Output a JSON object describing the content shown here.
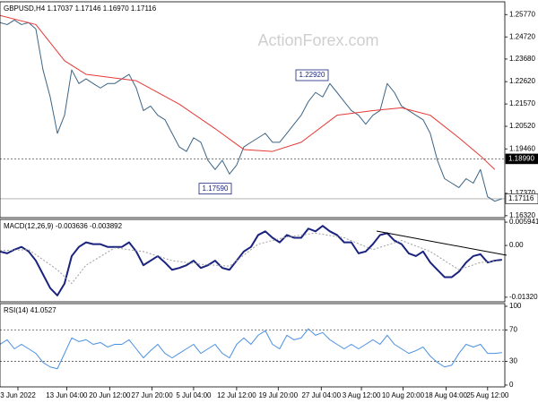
{
  "chart_data": [
    {
      "type": "line",
      "title": "GBPUSD,H4 1.17037 1.17146 1.16970 1.17116",
      "watermark": "ActionForex.com",
      "xlim": [
        0,
        70.4
      ],
      "xticks": [
        {
          "value": 2.5,
          "label": "3 Jun 2022"
        },
        {
          "value": 9.3,
          "label": "13 Jun 04:00"
        },
        {
          "value": 15.3,
          "label": "20 Jun 12:00"
        },
        {
          "value": 21.2,
          "label": "27 Jun 20:00"
        },
        {
          "value": 27,
          "label": "5 Jul 04:00"
        },
        {
          "value": 33,
          "label": "12 Jul 12:00"
        },
        {
          "value": 38.8,
          "label": "19 Jul 20:00"
        },
        {
          "value": 44.8,
          "label": "27 Jul 04:00"
        },
        {
          "value": 50.4,
          "label": "3 Aug 12:00"
        },
        {
          "value": 56.2,
          "label": "10 Aug 20:00"
        },
        {
          "value": 62.2,
          "label": "18 Aug 04:00"
        },
        {
          "value": 68,
          "label": "25 Aug 12:00"
        }
      ],
      "ylim": [
        1.1623,
        1.2637
      ],
      "yticks": [
        {
          "value": 1.2577,
          "label": "1.25770"
        },
        {
          "value": 1.2472,
          "label": "1.24720"
        },
        {
          "value": 1.2368,
          "label": "1.23680"
        },
        {
          "value": 1.2262,
          "label": "1.22620"
        },
        {
          "value": 1.2157,
          "label": "1.21570"
        },
        {
          "value": 1.2052,
          "label": "1.20520"
        },
        {
          "value": 1.1946,
          "label": "1.19460"
        },
        {
          "value": 1.1737,
          "label": "1.17370"
        },
        {
          "value": 1.1632,
          "label": "1.16320"
        }
      ],
      "series": [
        {
          "color": "#3c6485",
          "values": [
            1.2539,
            1.253,
            1.2551,
            1.253,
            1.2539,
            1.2509,
            1.2317,
            1.219,
            1.2019,
            1.2104,
            1.2317,
            1.2253,
            1.2275,
            1.2253,
            1.2232,
            1.2253,
            1.2253,
            1.2275,
            1.2296,
            1.2232,
            1.2126,
            1.2147,
            1.2104,
            1.2083,
            1.2019,
            1.1955,
            1.1934,
            1.1998,
            1.1977,
            1.1892,
            1.1849,
            1.1892,
            1.1828,
            1.187,
            1.1955,
            1.1977,
            1.1998,
            1.2019,
            1.1977,
            1.1977,
            1.2019,
            1.2062,
            1.2104,
            1.2168,
            1.2211,
            1.219,
            1.2253,
            1.2211,
            1.2168,
            1.2126,
            1.2104,
            1.2062,
            1.2104,
            1.2126,
            1.2253,
            1.2211,
            1.2147,
            1.2126,
            1.2104,
            1.2083,
            1.2019,
            1.1892,
            1.1806,
            1.1785,
            1.1764,
            1.1806,
            1.1785,
            1.1849,
            1.1721,
            1.17,
            1.1712
          ]
        },
        {
          "color": "#e53935",
          "x": [
            0,
            5,
            9,
            12,
            19,
            25,
            30,
            34,
            38,
            42,
            47,
            52,
            56,
            60,
            64,
            67,
            69
          ],
          "values": [
            1.2573,
            1.253,
            1.236,
            1.2296,
            1.2266,
            1.2156,
            1.2041,
            1.1943,
            1.1934,
            1.1977,
            1.2104,
            1.2126,
            1.2139,
            1.2104,
            1.1998,
            1.1913,
            1.1849
          ]
        }
      ],
      "annotations": [
        {
          "value": 1.2292,
          "label": "1.22920"
        },
        {
          "value": 1.1759,
          "label": "1.17590"
        }
      ],
      "levels": [
        {
          "value": 1.1899,
          "label": "1.18990",
          "style": "dotted"
        },
        {
          "value": 1.17116,
          "label": "1.17116",
          "style": "solid"
        }
      ]
    },
    {
      "type": "line",
      "title": "MACD(12,26,9) -0.003636 -0.003892",
      "xlim": [
        0,
        70.4
      ],
      "ylim": [
        -0.01437,
        0.00664
      ],
      "yticks": [
        0.005941,
        {
          "value": 0,
          "label": "0.00"
        },
        -0.013207
      ],
      "series": [
        {
          "color": "#1a237e",
          "width": 2,
          "values": [
            -0.00154,
            -0.00201,
            -0.00107,
            -0.00037,
            -0.00154,
            -0.00388,
            -0.00738,
            -0.01088,
            -0.01275,
            -0.00971,
            -0.00271,
            -0.00037,
            0.00079,
            0.00033,
            0.00033,
            -0.00037,
            -0.00037,
            -0.00037,
            0.00079,
            -0.00154,
            -0.00504,
            -0.00388,
            -0.00271,
            -0.00434,
            -0.00621,
            -0.00574,
            -0.00504,
            -0.00388,
            -0.00574,
            -0.00504,
            -0.00388,
            -0.00574,
            -0.00621,
            -0.00388,
            -0.00154,
            -0.00037,
            0.00266,
            0.0036,
            0.00196,
            0.00079,
            0.00266,
            0.00196,
            0.00196,
            0.0043,
            0.0036,
            0.005,
            0.0036,
            0.00266,
            0.00079,
            0.00079,
            -0.00201,
            -0.00154,
            0.00033,
            0.00266,
            0.00313,
            0.00126,
            0.00033,
            -0.00201,
            -0.00271,
            -0.00154,
            -0.00434,
            -0.00621,
            -0.00808,
            -0.00808,
            -0.00668,
            -0.00434,
            -0.00271,
            -0.00224,
            -0.00434,
            -0.00388,
            -0.00364
          ]
        },
        {
          "color": "#9e9e9e",
          "dotted": true,
          "x": [
            0,
            4,
            8,
            10,
            12,
            16,
            20,
            24,
            28,
            32,
            36,
            40,
            44,
            48,
            52,
            56,
            60,
            64,
            67,
            70
          ],
          "values": [
            -0.00131,
            -0.00107,
            -0.00621,
            -0.00971,
            -0.00504,
            -0.00061,
            -0.00154,
            -0.00388,
            -0.00481,
            -0.00528,
            0.00033,
            0.00219,
            0.00313,
            0.00196,
            -0.00107,
            0.00126,
            -0.00154,
            -0.00621,
            -0.00434,
            -0.00389
          ]
        }
      ]
    },
    {
      "type": "line",
      "title": "RSI(14) 41.0527",
      "xlim": [
        0,
        70.4
      ],
      "ylim": [
        -2.3,
        103.4
      ],
      "yticks": [
        100,
        70,
        30,
        0
      ],
      "levels": [
        {
          "value": 70,
          "style": "dotted"
        },
        {
          "value": 30,
          "style": "dotted"
        }
      ],
      "series": [
        {
          "color": "#4a90e2",
          "values": [
            51.7,
            57.5,
            46,
            51.7,
            46,
            40.2,
            28.7,
            23,
            20.7,
            40.2,
            59.8,
            55.2,
            57.5,
            51.7,
            54,
            48.3,
            51.7,
            51.7,
            57.5,
            46,
            34.5,
            43.7,
            51.7,
            40.2,
            34.5,
            40.2,
            46,
            51.7,
            40.2,
            46,
            51.7,
            40.2,
            34.5,
            51.7,
            59.8,
            51.7,
            63.2,
            69,
            51.7,
            46,
            63.2,
            57.5,
            59.8,
            71.3,
            63.2,
            66.7,
            57.5,
            51.7,
            46,
            51.7,
            46,
            51.7,
            57.5,
            51.7,
            63.2,
            51.7,
            46,
            40.2,
            43.7,
            48.3,
            36.8,
            28.7,
            23,
            25.3,
            40.2,
            51.7,
            48.3,
            51.7,
            40.2,
            40.2,
            41.1
          ]
        }
      ]
    }
  ]
}
